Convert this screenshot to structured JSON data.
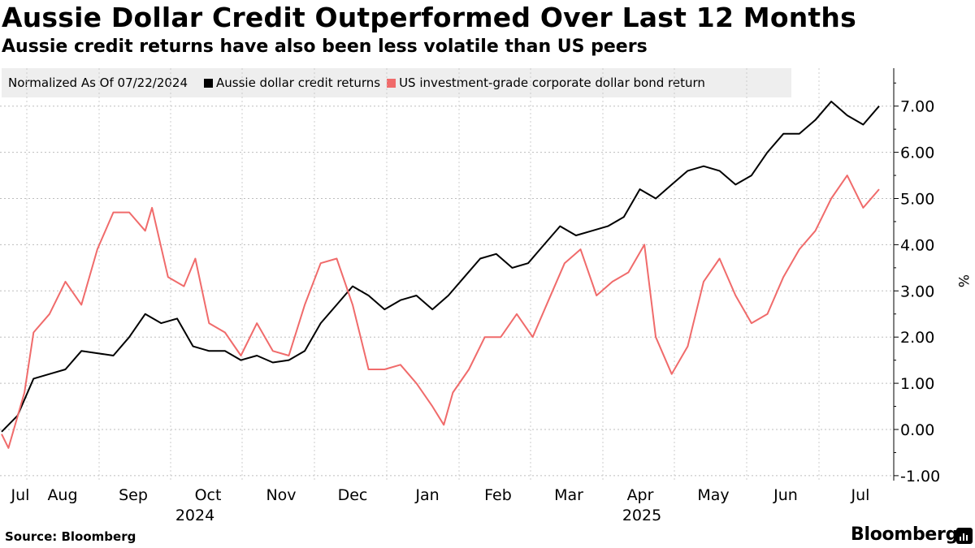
{
  "chart_data": {
    "type": "line",
    "title": "Aussie Dollar Credit Outperformed Over Last 12 Months",
    "subtitle": "Aussie credit returns have also been less volatile than US peers",
    "legend_note": "Normalized As Of 07/22/2024",
    "ylabel": "%",
    "ylim": [
      -1.0,
      7.6
    ],
    "yticks": [
      "-1.00",
      "0.00",
      "1.00",
      "2.00",
      "3.00",
      "4.00",
      "5.00",
      "6.00",
      "7.00"
    ],
    "xlim": [
      "2024-07-22",
      "2025-07-21"
    ],
    "month_labels": [
      "Jul",
      "Aug",
      "Sep",
      "Oct",
      "Nov",
      "Dec",
      "Jan",
      "Feb",
      "Mar",
      "Apr",
      "May",
      "Jun",
      "Jul"
    ],
    "year_labels": [
      "2024",
      "2025"
    ],
    "series": [
      {
        "name": "Aussie dollar credit returns",
        "color": "#000000",
        "points": [
          [
            0,
            -0.05
          ],
          [
            7,
            0.3
          ],
          [
            14,
            1.1
          ],
          [
            21,
            1.2
          ],
          [
            28,
            1.3
          ],
          [
            35,
            1.7
          ],
          [
            42,
            1.65
          ],
          [
            49,
            1.6
          ],
          [
            56,
            2.0
          ],
          [
            63,
            2.5
          ],
          [
            70,
            2.3
          ],
          [
            77,
            2.4
          ],
          [
            84,
            1.8
          ],
          [
            91,
            1.7
          ],
          [
            98,
            1.7
          ],
          [
            105,
            1.5
          ],
          [
            112,
            1.6
          ],
          [
            119,
            1.45
          ],
          [
            126,
            1.5
          ],
          [
            133,
            1.7
          ],
          [
            140,
            2.3
          ],
          [
            147,
            2.7
          ],
          [
            154,
            3.1
          ],
          [
            161,
            2.9
          ],
          [
            168,
            2.6
          ],
          [
            175,
            2.8
          ],
          [
            182,
            2.9
          ],
          [
            189,
            2.6
          ],
          [
            196,
            2.9
          ],
          [
            203,
            3.3
          ],
          [
            210,
            3.7
          ],
          [
            217,
            3.8
          ],
          [
            224,
            3.5
          ],
          [
            231,
            3.6
          ],
          [
            238,
            4.0
          ],
          [
            245,
            4.4
          ],
          [
            252,
            4.2
          ],
          [
            259,
            4.3
          ],
          [
            266,
            4.4
          ],
          [
            273,
            4.6
          ],
          [
            280,
            5.2
          ],
          [
            287,
            5.0
          ],
          [
            294,
            5.3
          ],
          [
            301,
            5.6
          ],
          [
            308,
            5.7
          ],
          [
            315,
            5.6
          ],
          [
            322,
            5.3
          ],
          [
            329,
            5.5
          ],
          [
            336,
            6.0
          ],
          [
            343,
            6.4
          ],
          [
            350,
            6.4
          ],
          [
            357,
            6.7
          ],
          [
            364,
            7.1
          ],
          [
            371,
            6.8
          ],
          [
            378,
            6.6
          ],
          [
            385,
            7.0
          ]
        ]
      },
      {
        "name": "US investment-grade corporate dollar bond return",
        "color": "#f06b6b",
        "points": [
          [
            0,
            -0.1
          ],
          [
            3,
            -0.4
          ],
          [
            10,
            0.8
          ],
          [
            14,
            2.1
          ],
          [
            21,
            2.5
          ],
          [
            28,
            3.2
          ],
          [
            35,
            2.7
          ],
          [
            42,
            3.9
          ],
          [
            49,
            4.7
          ],
          [
            56,
            4.7
          ],
          [
            63,
            4.3
          ],
          [
            66,
            4.8
          ],
          [
            73,
            3.3
          ],
          [
            80,
            3.1
          ],
          [
            85,
            3.7
          ],
          [
            91,
            2.3
          ],
          [
            98,
            2.1
          ],
          [
            105,
            1.6
          ],
          [
            112,
            2.3
          ],
          [
            119,
            1.7
          ],
          [
            126,
            1.6
          ],
          [
            133,
            2.7
          ],
          [
            140,
            3.6
          ],
          [
            147,
            3.7
          ],
          [
            154,
            2.7
          ],
          [
            161,
            1.3
          ],
          [
            168,
            1.3
          ],
          [
            175,
            1.4
          ],
          [
            182,
            1.0
          ],
          [
            189,
            0.5
          ],
          [
            194,
            0.1
          ],
          [
            198,
            0.8
          ],
          [
            205,
            1.3
          ],
          [
            212,
            2.0
          ],
          [
            219,
            2.0
          ],
          [
            226,
            2.5
          ],
          [
            233,
            2.0
          ],
          [
            240,
            2.8
          ],
          [
            247,
            3.6
          ],
          [
            254,
            3.9
          ],
          [
            261,
            2.9
          ],
          [
            268,
            3.2
          ],
          [
            275,
            3.4
          ],
          [
            282,
            4.0
          ],
          [
            287,
            2.0
          ],
          [
            294,
            1.2
          ],
          [
            301,
            1.8
          ],
          [
            308,
            3.2
          ],
          [
            315,
            3.7
          ],
          [
            322,
            2.9
          ],
          [
            329,
            2.3
          ],
          [
            336,
            2.5
          ],
          [
            343,
            3.3
          ],
          [
            350,
            3.9
          ],
          [
            357,
            4.3
          ],
          [
            364,
            5.0
          ],
          [
            371,
            5.5
          ],
          [
            378,
            4.8
          ],
          [
            385,
            5.2
          ]
        ]
      }
    ]
  },
  "footer": {
    "source": "Source: Bloomberg",
    "brand": "Bloomberg"
  }
}
